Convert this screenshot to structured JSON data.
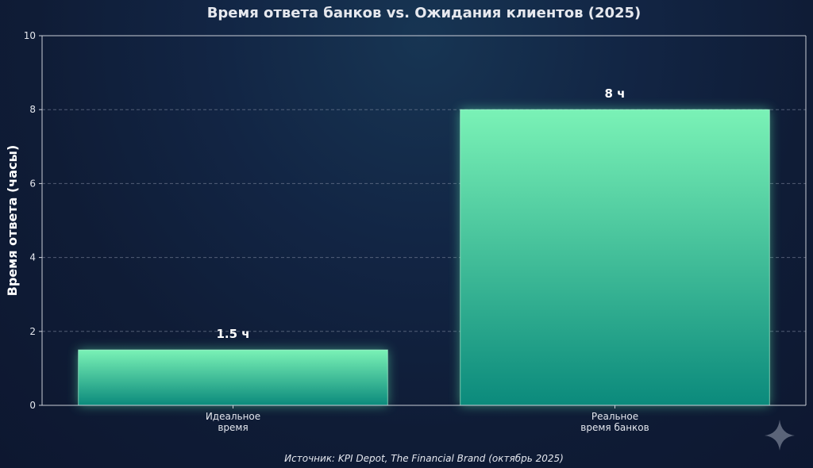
{
  "chart_data": {
    "type": "bar",
    "title": "Время ответа банков vs. Ожидания клиентов (2025)",
    "ylabel": "Время ответа (часы)",
    "xlabel": "",
    "categories": [
      [
        "Идеальное",
        "время"
      ],
      [
        "Реальное",
        "время банков"
      ]
    ],
    "values": [
      1.5,
      8
    ],
    "data_labels": [
      "1.5 ч",
      "8 ч"
    ],
    "ylim": [
      0,
      10
    ],
    "yticks": [
      0,
      2,
      4,
      6,
      8,
      10
    ],
    "grid": true,
    "bar_colors": {
      "top": "#7af2b6",
      "bottom": "#0b8a7c",
      "glow": "#5ff0b0"
    },
    "source": "Источник: KPI Depot, The Financial Brand (октябрь 2025)"
  },
  "decor": {
    "icon": "sparkle-icon"
  }
}
